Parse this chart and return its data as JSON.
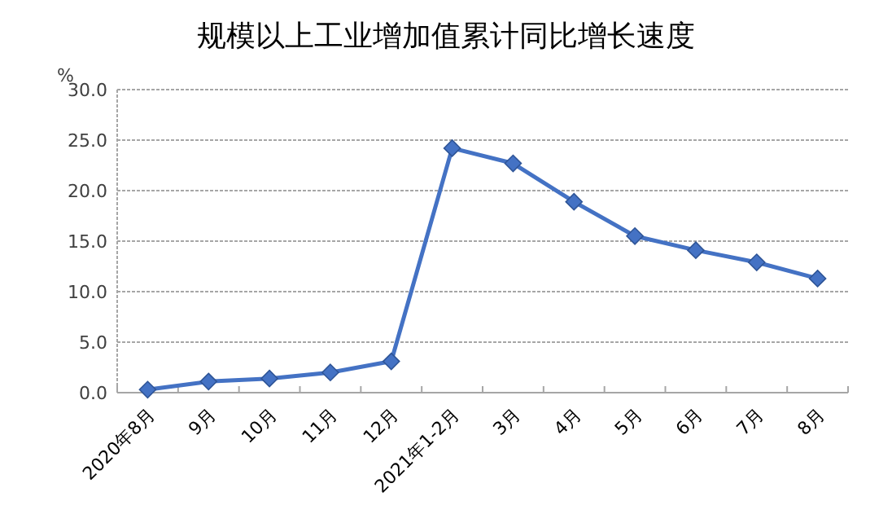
{
  "chart_data": {
    "type": "line",
    "title": "规模以上工业增加值累计同比增长速度",
    "ylabel": "%",
    "categories": [
      "2020年8月",
      "9月",
      "10月",
      "11月",
      "12月",
      "2021年1-2月",
      "3月",
      "4月",
      "5月",
      "6月",
      "7月",
      "8月"
    ],
    "series": [
      {
        "color": "#4472c4",
        "values": [
          0.3,
          1.1,
          1.4,
          2.0,
          3.1,
          24.2,
          22.7,
          18.9,
          15.5,
          14.1,
          12.9,
          11.3
        ]
      }
    ],
    "ylim": [
      0,
      30
    ],
    "yticks": [
      {
        "value": 0,
        "label": "0.0"
      },
      {
        "value": 5,
        "label": "5.0"
      },
      {
        "value": 10,
        "label": "10.0"
      },
      {
        "value": 15,
        "label": "15.0"
      },
      {
        "value": 20,
        "label": "20.0"
      },
      {
        "value": 25,
        "label": "25.0"
      },
      {
        "value": 30,
        "label": "30.0"
      }
    ],
    "grid": "y",
    "marker": "diamond",
    "line_style": "solid"
  }
}
